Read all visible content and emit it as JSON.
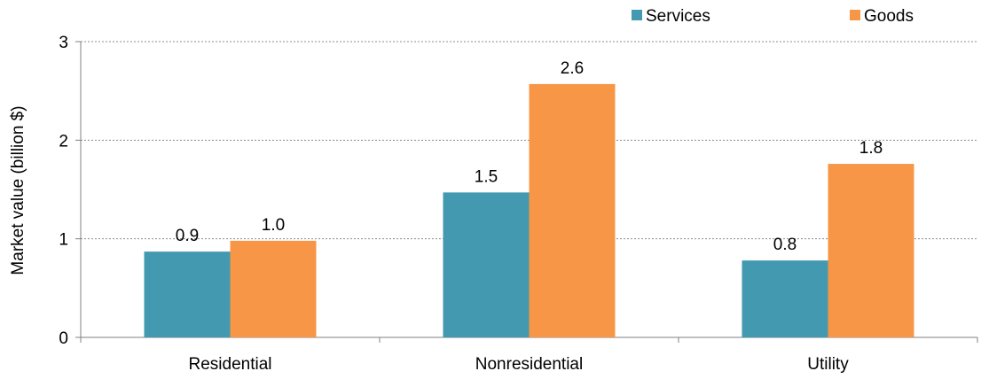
{
  "chart_data": {
    "type": "bar",
    "title": "",
    "xlabel": "",
    "ylabel": "Market value (billion $)",
    "ylim": [
      0,
      3
    ],
    "yticks": [
      0,
      1,
      2,
      3
    ],
    "grid": true,
    "legend_position": "top-right",
    "categories": [
      "Residential",
      "Nonresidential",
      "Utility"
    ],
    "series": [
      {
        "name": "Services",
        "color": "#4299B0",
        "values": [
          0.87,
          1.47,
          0.78
        ],
        "labels": [
          "0.9",
          "1.5",
          "0.8"
        ]
      },
      {
        "name": "Goods",
        "color": "#F79646",
        "values": [
          0.98,
          2.57,
          1.76
        ],
        "labels": [
          "1.0",
          "2.6",
          "1.8"
        ]
      }
    ]
  }
}
